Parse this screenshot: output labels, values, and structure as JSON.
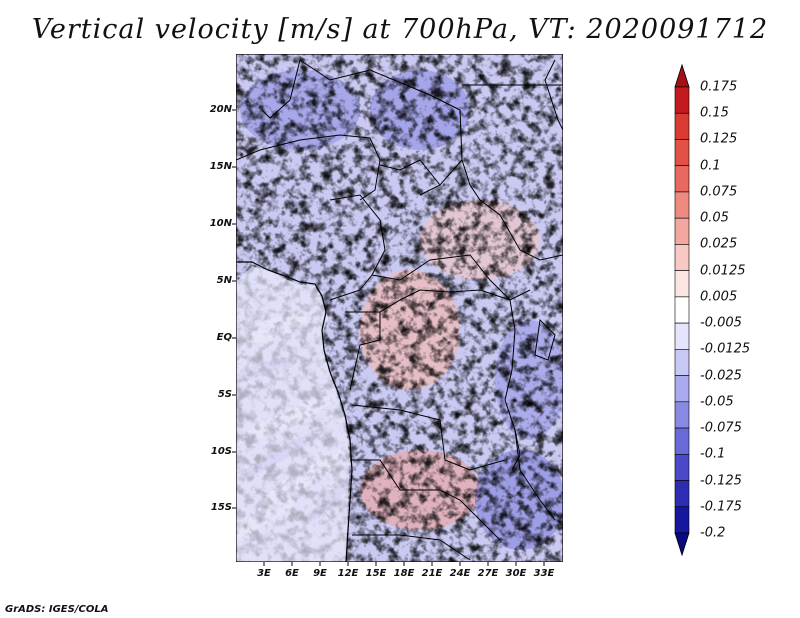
{
  "title": "Vertical velocity [m/s] at 700hPa, VT: 2020091712",
  "credit": "GrADS: IGES/COLA",
  "lat_labels": [
    "20N",
    "15N",
    "10N",
    "5N",
    "EQ",
    "5S",
    "10S",
    "15S"
  ],
  "lon_labels": [
    "3E",
    "6E",
    "9E",
    "12E",
    "15E",
    "18E",
    "21E",
    "24E",
    "27E",
    "30E",
    "33E"
  ],
  "colorbar": {
    "labels": [
      "0.175",
      "0.15",
      "0.125",
      "0.1",
      "0.075",
      "0.05",
      "0.025",
      "0.0125",
      "0.005",
      "-0.005",
      "-0.0125",
      "-0.025",
      "-0.05",
      "-0.075",
      "-0.1",
      "-0.125",
      "-0.175",
      "-0.2"
    ],
    "colors": [
      "#a50f15",
      "#c21a1e",
      "#d93a32",
      "#e25048",
      "#e8695f",
      "#ee8a80",
      "#f4a7a0",
      "#f8c8c2",
      "#fce6e4",
      "#ffffff",
      "#e4e4fb",
      "#c8c8f5",
      "#aaaaee",
      "#8a8ae4",
      "#6a6ad8",
      "#4a4ac8",
      "#2d2db4",
      "#16169e",
      "#0a0a80"
    ]
  }
}
